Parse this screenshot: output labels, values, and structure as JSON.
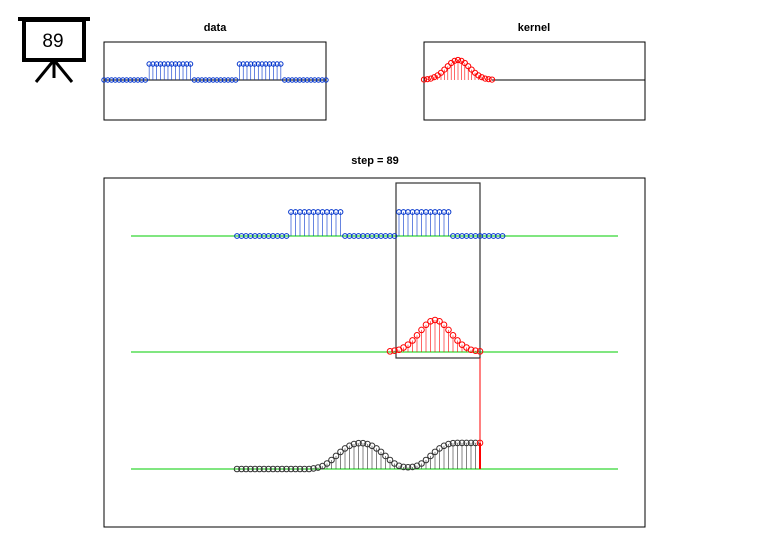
{
  "icon_label": "89",
  "chart_data": [
    {
      "type": "stem",
      "title": "data",
      "color": "#0033cc",
      "values": [
        0,
        0,
        0,
        0,
        0,
        0,
        0,
        0,
        0,
        0,
        0,
        0,
        1,
        1,
        1,
        1,
        1,
        1,
        1,
        1,
        1,
        1,
        1,
        1,
        0,
        0,
        0,
        0,
        0,
        0,
        0,
        0,
        0,
        0,
        0,
        0,
        1,
        1,
        1,
        1,
        1,
        1,
        1,
        1,
        1,
        1,
        1,
        1,
        0,
        0,
        0,
        0,
        0,
        0,
        0,
        0,
        0,
        0,
        0,
        0
      ]
    },
    {
      "type": "stem",
      "title": "kernel",
      "color": "#ff0000",
      "values": [
        0.02,
        0.04,
        0.07,
        0.14,
        0.23,
        0.36,
        0.52,
        0.69,
        0.85,
        0.96,
        1,
        0.96,
        0.85,
        0.69,
        0.52,
        0.36,
        0.23,
        0.14,
        0.07,
        0.04,
        0.02
      ]
    },
    {
      "type": "convolution",
      "title": "step = 89",
      "baseline_color": "#00cc00",
      "highlight_color": "#ff0000",
      "series": [
        {
          "color": "#0033cc",
          "values": [
            0,
            0,
            0,
            0,
            0,
            0,
            0,
            0,
            0,
            0,
            0,
            0,
            1,
            1,
            1,
            1,
            1,
            1,
            1,
            1,
            1,
            1,
            1,
            1,
            0,
            0,
            0,
            0,
            0,
            0,
            0,
            0,
            0,
            0,
            0,
            0,
            1,
            1,
            1,
            1,
            1,
            1,
            1,
            1,
            1,
            1,
            1,
            1,
            0,
            0,
            0,
            0,
            0,
            0,
            0,
            0,
            0,
            0,
            0,
            0
          ]
        },
        {
          "color": "#ff0000",
          "values": [
            0.02,
            0.04,
            0.07,
            0.14,
            0.23,
            0.36,
            0.52,
            0.69,
            0.85,
            0.96,
            1,
            0.96,
            0.85,
            0.69,
            0.52,
            0.36,
            0.23,
            0.14,
            0.07,
            0.04,
            0.02
          ]
        },
        {
          "color": "#333333",
          "values": [
            0,
            0,
            0,
            0,
            0,
            0,
            0,
            0,
            0,
            0,
            0,
            0,
            0,
            0,
            0,
            0,
            0,
            0.02,
            0.05,
            0.1,
            0.19,
            0.31,
            0.45,
            0.59,
            0.71,
            0.8,
            0.86,
            0.89,
            0.89,
            0.86,
            0.8,
            0.71,
            0.59,
            0.45,
            0.31,
            0.19,
            0.11,
            0.07,
            0.06,
            0.07,
            0.11,
            0.19,
            0.31,
            0.45,
            0.59,
            0.71,
            0.8,
            0.86,
            0.89,
            0.9,
            0.9,
            0.9,
            0.9,
            0.9,
            0.9
          ]
        }
      ]
    }
  ]
}
